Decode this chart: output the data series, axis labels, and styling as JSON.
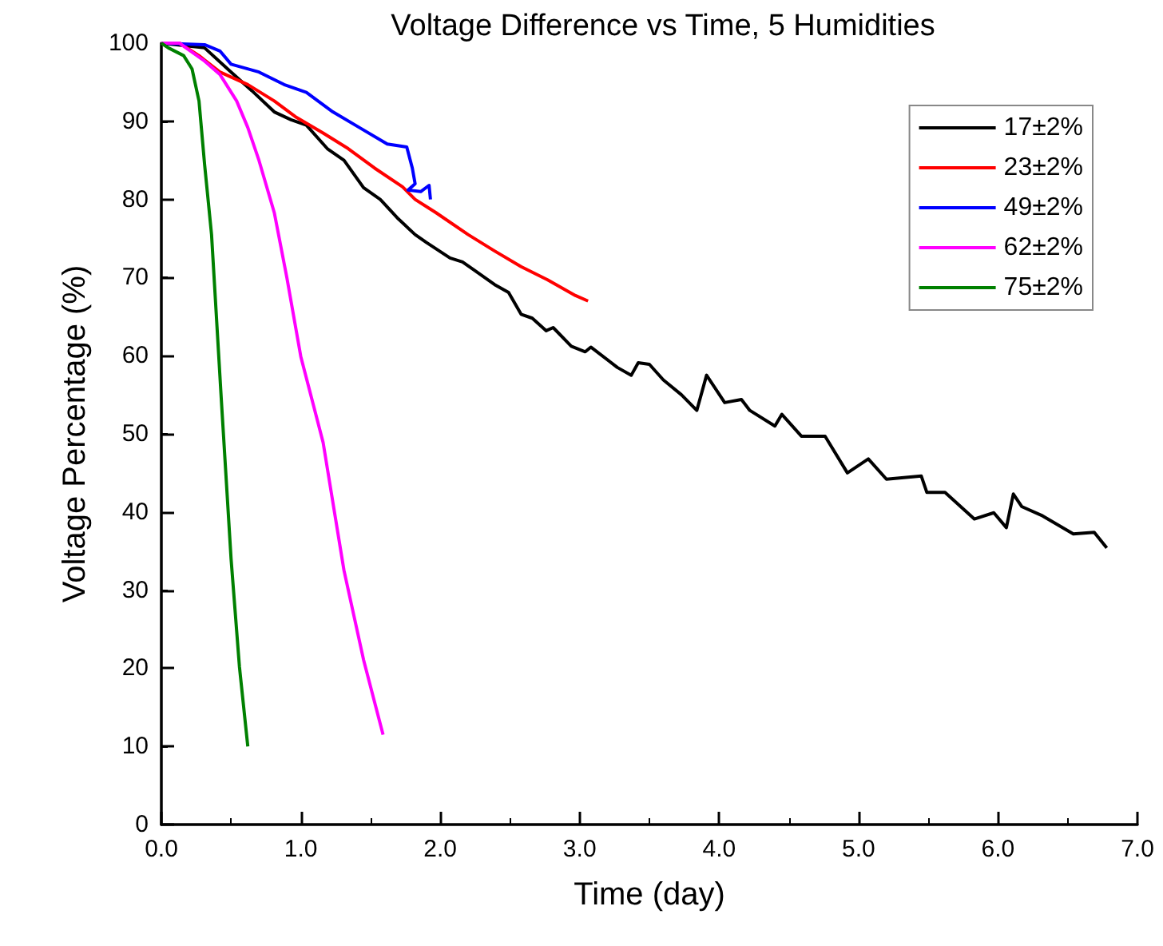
{
  "chart_data": {
    "type": "line",
    "title": "Voltage Difference vs Time, 5 Humidities",
    "xlabel": "Time (day)",
    "ylabel": "Voltage Percentage (%)",
    "xlim": [
      0,
      7
    ],
    "xticks": [
      {
        "value": 0,
        "label": "0.0"
      },
      {
        "value": 1,
        "label": "1.0"
      },
      {
        "value": 2,
        "label": "2.0"
      },
      {
        "value": 3,
        "label": "3.0"
      },
      {
        "value": 4,
        "label": "4.0"
      },
      {
        "value": 5,
        "label": "5.0"
      },
      {
        "value": 6,
        "label": "6.0"
      },
      {
        "value": 7,
        "label": "7.0"
      }
    ],
    "ylim": [
      0,
      100
    ],
    "yticks": [
      0,
      10,
      20,
      30,
      40,
      50,
      60,
      70,
      80,
      90,
      100
    ],
    "grid": false,
    "legend": "top right",
    "marker": "none",
    "line_style": "solid",
    "series": [
      {
        "name": "17±2%",
        "color": "#000000",
        "x": [
          0,
          0.31,
          0.5,
          0.65,
          0.81,
          0.93,
          1.04,
          1.19,
          1.31,
          1.45,
          1.57,
          1.7,
          1.82,
          1.9,
          2.07,
          2.16,
          2.24,
          2.39,
          2.49,
          2.58,
          2.66,
          2.76,
          2.81,
          2.94,
          3.04,
          3.08,
          3.27,
          3.37,
          3.42,
          3.5,
          3.6,
          3.73,
          3.84,
          3.91,
          4.04,
          4.16,
          4.22,
          4.4,
          4.45,
          4.59,
          4.76,
          4.92,
          5.07,
          5.2,
          5.45,
          5.49,
          5.62,
          5.83,
          5.97,
          6.06,
          6.11,
          6.17,
          6.32,
          6.54,
          6.69,
          6.78
        ],
        "values": [
          100,
          99.4,
          96.3,
          93.9,
          91.2,
          90.2,
          89.5,
          86.5,
          85,
          81.5,
          80,
          77.5,
          75.5,
          74.5,
          72.5,
          72,
          71,
          69.1,
          68.1,
          65.3,
          64.8,
          63.2,
          63.6,
          61.2,
          60.5,
          61.1,
          58.5,
          57.5,
          59.1,
          58.9,
          56.9,
          55,
          53,
          57.5,
          54,
          54.4,
          53,
          51,
          52.5,
          49.7,
          49.7,
          45,
          46.8,
          44.2,
          44.6,
          42.5,
          42.5,
          39.1,
          39.9,
          38,
          42.3,
          40.7,
          39.5,
          37.2,
          37.4,
          35.4
        ]
      },
      {
        "name": "23±2%",
        "color": "#ff0000",
        "x": [
          0,
          0.13,
          0.27,
          0.42,
          0.62,
          0.81,
          0.96,
          1.16,
          1.34,
          1.53,
          1.73,
          1.82,
          1.97,
          2.2,
          2.39,
          2.58,
          2.77,
          2.97,
          3.06
        ],
        "values": [
          100,
          100,
          98.4,
          96.3,
          94.7,
          92.6,
          90.6,
          88.5,
          86.5,
          84,
          81.6,
          80,
          78.3,
          75.5,
          73.4,
          71.4,
          69.7,
          67.7,
          67
        ]
      },
      {
        "name": "49±2%",
        "color": "#0000ff",
        "x": [
          0,
          0.31,
          0.42,
          0.5,
          0.7,
          0.88,
          1.04,
          1.23,
          1.42,
          1.62,
          1.76,
          1.8,
          1.82,
          1.77,
          1.86,
          1.92,
          1.93
        ],
        "values": [
          100,
          99.8,
          99,
          97.3,
          96.3,
          94.7,
          93.7,
          91.2,
          89.2,
          87.1,
          86.7,
          84,
          82,
          81.2,
          81,
          81.8,
          80
        ]
      },
      {
        "name": "62±2%",
        "color": "#ff00ff",
        "x": [
          0,
          0.13,
          0.31,
          0.42,
          0.54,
          0.62,
          0.7,
          0.81,
          0.9,
          1.0,
          1.16,
          1.31,
          1.45,
          1.59
        ],
        "values": [
          100,
          100,
          97.7,
          96,
          92.6,
          89.2,
          85,
          78.3,
          70,
          59.9,
          48.9,
          32.5,
          21.1,
          11.5
        ]
      },
      {
        "name": "75±2%",
        "color": "#008000",
        "x": [
          0,
          0.05,
          0.16,
          0.22,
          0.27,
          0.31,
          0.36,
          0.43,
          0.5,
          0.56,
          0.62
        ],
        "values": [
          100,
          99.4,
          98.4,
          96.7,
          92.6,
          84.5,
          75.5,
          54.4,
          34,
          20.2,
          10
        ]
      }
    ]
  }
}
